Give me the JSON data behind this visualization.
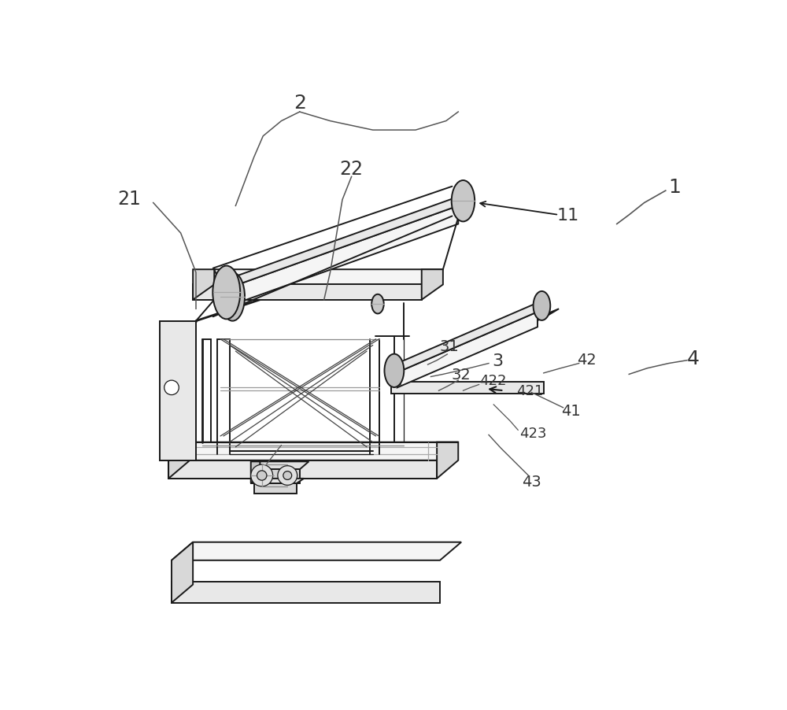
{
  "bg_color": "#ffffff",
  "lc": "#1a1a1a",
  "lc_gray": "#888888",
  "lc_med": "#555555",
  "figsize": [
    10.0,
    9.03
  ],
  "dpi": 100,
  "face_light": "#f5f5f5",
  "face_mid": "#e8e8e8",
  "face_dark": "#d8d8d8",
  "face_darker": "#cccccc",
  "label_fs": 16,
  "small_label_fs": 14
}
